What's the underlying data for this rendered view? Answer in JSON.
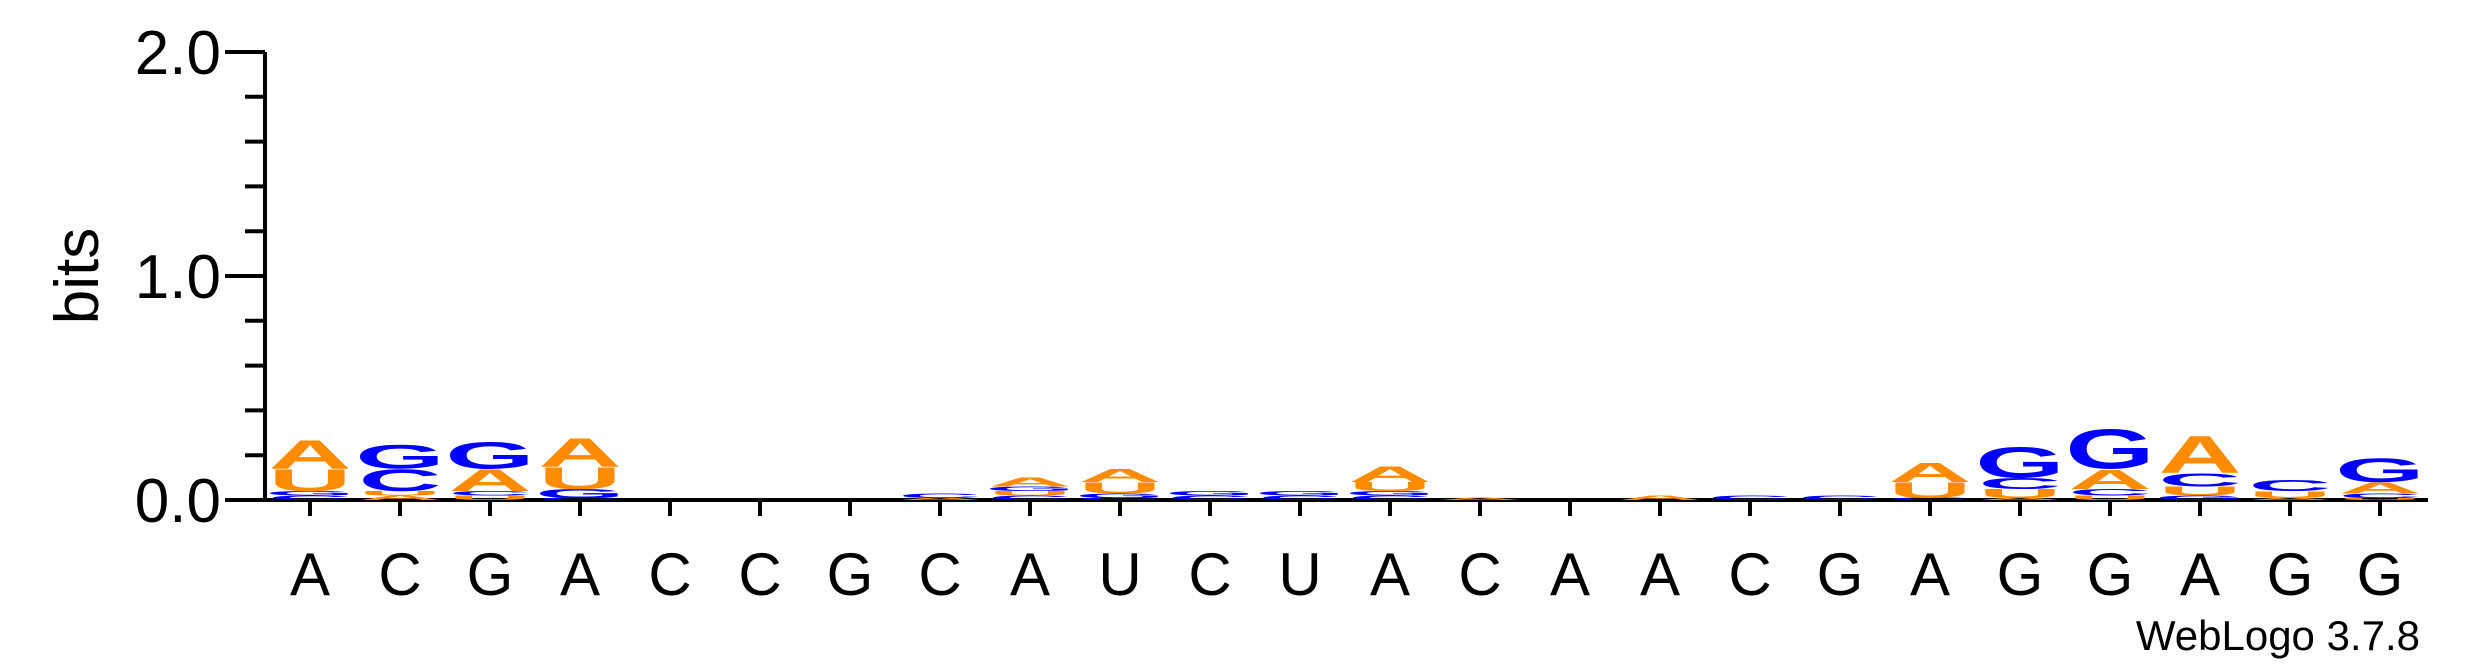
{
  "chart_data": {
    "type": "sequence-logo",
    "ylabel": "bits",
    "ylim": [
      0,
      2.0
    ],
    "yticks": [
      "0.0",
      "1.0",
      "2.0"
    ],
    "credit": "WebLogo 3.7.8",
    "colors": {
      "A": "#ff8c00",
      "U": "#ff8c00",
      "C": "#0000ff",
      "G": "#0000ff"
    },
    "consensus": [
      "A",
      "C",
      "G",
      "A",
      "C",
      "C",
      "G",
      "C",
      "A",
      "U",
      "C",
      "U",
      "A",
      "C",
      "A",
      "A",
      "C",
      "G",
      "A",
      "G",
      "G",
      "A",
      "G",
      "G"
    ],
    "positions": [
      {
        "stack": [
          [
            "C",
            0.02
          ],
          [
            "G",
            0.02
          ],
          [
            "U",
            0.1
          ],
          [
            "A",
            0.13
          ]
        ]
      },
      {
        "stack": [
          [
            "A",
            0.02
          ],
          [
            "U",
            0.02
          ],
          [
            "C",
            0.1
          ],
          [
            "G",
            0.11
          ]
        ]
      },
      {
        "stack": [
          [
            "U",
            0.02
          ],
          [
            "C",
            0.02
          ],
          [
            "A",
            0.1
          ],
          [
            "G",
            0.12
          ]
        ]
      },
      {
        "stack": [
          [
            "C",
            0.01
          ],
          [
            "G",
            0.04
          ],
          [
            "U",
            0.1
          ],
          [
            "A",
            0.13
          ]
        ]
      },
      {
        "stack": []
      },
      {
        "stack": []
      },
      {
        "stack": []
      },
      {
        "stack": [
          [
            "A",
            0.01
          ],
          [
            "C",
            0.02
          ]
        ]
      },
      {
        "stack": [
          [
            "C",
            0.02
          ],
          [
            "U",
            0.02
          ],
          [
            "G",
            0.02
          ],
          [
            "A",
            0.04
          ]
        ]
      },
      {
        "stack": [
          [
            "C",
            0.01
          ],
          [
            "G",
            0.02
          ],
          [
            "U",
            0.05
          ],
          [
            "A",
            0.06
          ]
        ]
      },
      {
        "stack": [
          [
            "C",
            0.02
          ],
          [
            "G",
            0.02
          ]
        ]
      },
      {
        "stack": [
          [
            "C",
            0.02
          ],
          [
            "G",
            0.02
          ]
        ]
      },
      {
        "stack": [
          [
            "C",
            0.02
          ],
          [
            "G",
            0.02
          ],
          [
            "U",
            0.04
          ],
          [
            "A",
            0.07
          ]
        ]
      },
      {
        "stack": [
          [
            "A",
            0.01
          ]
        ]
      },
      {
        "stack": []
      },
      {
        "stack": [
          [
            "A",
            0.02
          ]
        ]
      },
      {
        "stack": [
          [
            "C",
            0.02
          ]
        ]
      },
      {
        "stack": [
          [
            "C",
            0.02
          ]
        ]
      },
      {
        "stack": [
          [
            "C",
            0.01
          ],
          [
            "U",
            0.07
          ],
          [
            "A",
            0.09
          ]
        ]
      },
      {
        "stack": [
          [
            "A",
            0.01
          ],
          [
            "U",
            0.04
          ],
          [
            "C",
            0.05
          ],
          [
            "G",
            0.14
          ]
        ]
      },
      {
        "stack": [
          [
            "U",
            0.02
          ],
          [
            "C",
            0.03
          ],
          [
            "A",
            0.09
          ],
          [
            "G",
            0.18
          ]
        ]
      },
      {
        "stack": [
          [
            "G",
            0.02
          ],
          [
            "U",
            0.04
          ],
          [
            "C",
            0.06
          ],
          [
            "A",
            0.17
          ]
        ]
      },
      {
        "stack": [
          [
            "A",
            0.01
          ],
          [
            "U",
            0.03
          ],
          [
            "C",
            0.05
          ]
        ]
      },
      {
        "stack": [
          [
            "U",
            0.01
          ],
          [
            "C",
            0.02
          ],
          [
            "A",
            0.05
          ],
          [
            "G",
            0.11
          ]
        ]
      }
    ]
  }
}
